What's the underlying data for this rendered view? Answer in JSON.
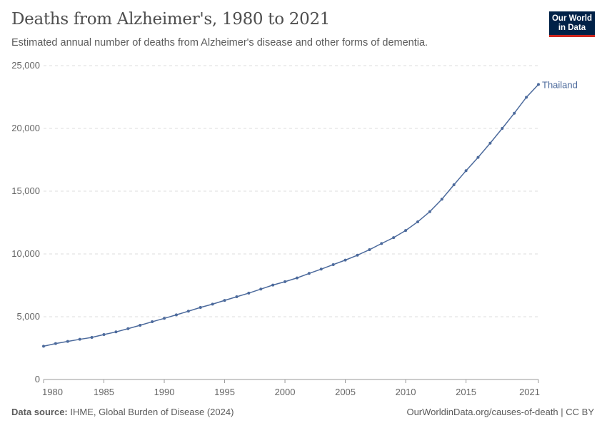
{
  "header": {
    "title": "Deaths from Alzheimer's, 1980 to 2021",
    "subtitle": "Estimated annual number of deaths from Alzheimer's disease and other forms of dementia.",
    "logo_line1": "Our World",
    "logo_line2": "in Data"
  },
  "footer": {
    "source_label": "Data source:",
    "source": "IHME, Global Burden of Disease (2024)",
    "link": "OurWorldinData.org/causes-of-death | CC BY"
  },
  "chart_data": {
    "type": "line",
    "title": "Deaths from Alzheimer's, 1980 to 2021",
    "subtitle": "Estimated annual number of deaths from Alzheimer's disease and other forms of dementia.",
    "xlim": [
      1980,
      2021
    ],
    "ylim": [
      0,
      25000
    ],
    "x_ticks": [
      "1980",
      "1985",
      "1990",
      "1995",
      "2000",
      "2005",
      "2010",
      "2015",
      "2021"
    ],
    "y_ticks": [
      "0",
      "5,000",
      "10,000",
      "15,000",
      "20,000",
      "25,000"
    ],
    "grid": "horizontal dashed",
    "legend": "line-end label",
    "x": [
      1980,
      1981,
      1982,
      1983,
      1984,
      1985,
      1986,
      1987,
      1988,
      1989,
      1990,
      1991,
      1992,
      1993,
      1994,
      1995,
      1996,
      1997,
      1998,
      1999,
      2000,
      2001,
      2002,
      2003,
      2004,
      2005,
      2006,
      2007,
      2008,
      2009,
      2010,
      2011,
      2012,
      2013,
      2014,
      2015,
      2016,
      2017,
      2018,
      2019,
      2020,
      2021
    ],
    "series": [
      {
        "name": "Thailand",
        "color": "#4c6a9c",
        "values": [
          2650,
          2860,
          3030,
          3200,
          3350,
          3580,
          3790,
          4050,
          4320,
          4600,
          4870,
          5150,
          5440,
          5740,
          6000,
          6300,
          6590,
          6880,
          7200,
          7520,
          7790,
          8090,
          8450,
          8790,
          9150,
          9510,
          9900,
          10340,
          10830,
          11300,
          11870,
          12560,
          13370,
          14360,
          15510,
          16630,
          17690,
          18820,
          20000,
          21210,
          22480,
          23500
        ]
      }
    ]
  }
}
